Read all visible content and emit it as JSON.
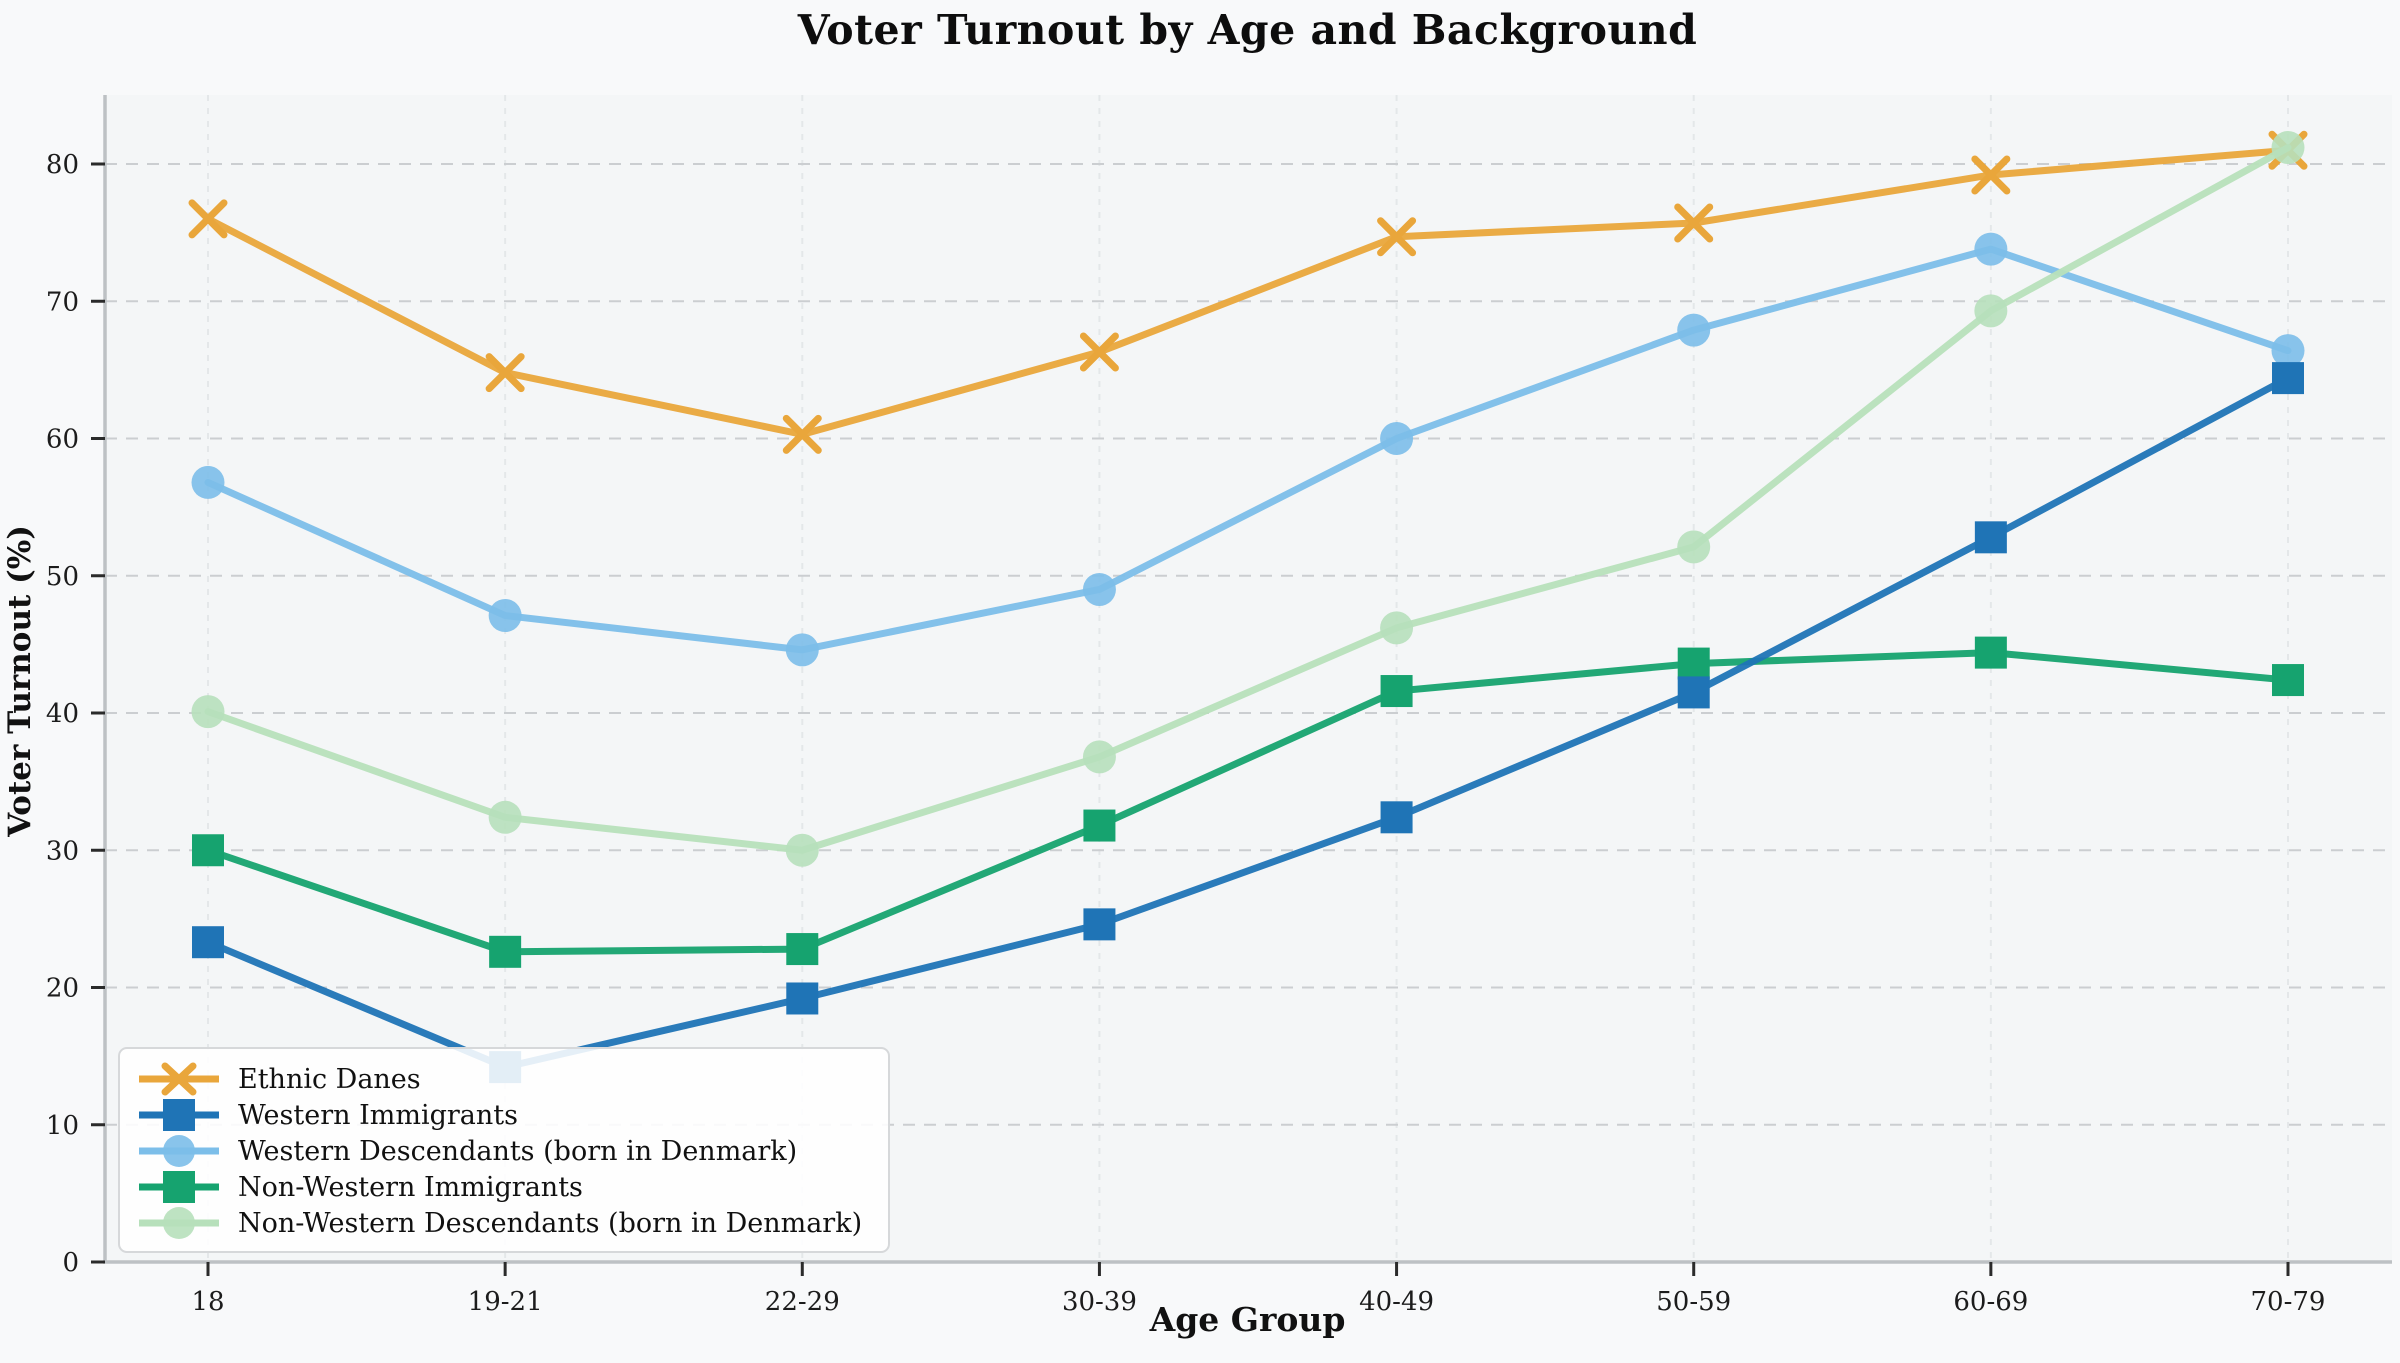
{
  "chart_data": {
    "type": "line",
    "title": "Voter Turnout by Age and Background",
    "xlabel": "Age Group",
    "ylabel": "Voter Turnout (%)",
    "categories": [
      "18",
      "19-21",
      "22-29",
      "30-39",
      "40-49",
      "50-59",
      "60-69",
      "70-79"
    ],
    "y_ticks": [
      0,
      10,
      20,
      30,
      40,
      50,
      60,
      70,
      80
    ],
    "ylim": [
      0,
      85
    ],
    "grid": "dashed horizontal and vertical gridlines",
    "legend_position": "lower left",
    "series": [
      {
        "name": "Ethnic Danes",
        "color": "#E9A63B",
        "marker": "x",
        "values": [
          76.0,
          64.8,
          60.3,
          66.3,
          74.7,
          75.7,
          79.2,
          81.0
        ]
      },
      {
        "name": "Western Immigrants",
        "color": "#1F74B6",
        "marker": "square",
        "values": [
          23.3,
          14.2,
          19.2,
          24.6,
          32.4,
          41.5,
          52.8,
          64.4
        ]
      },
      {
        "name": "Western Descendants (born in Denmark)",
        "color": "#7CBEE9",
        "marker": "circle",
        "values": [
          56.8,
          47.1,
          44.6,
          49.0,
          60.0,
          67.9,
          73.8,
          66.4
        ]
      },
      {
        "name": "Non-Western Immigrants",
        "color": "#16A36F",
        "marker": "square",
        "values": [
          30.0,
          22.6,
          22.8,
          31.8,
          41.6,
          43.6,
          44.4,
          42.4
        ]
      },
      {
        "name": "Non-Western Descendants (born in Denmark)",
        "color": "#B7E0BB",
        "marker": "circle",
        "values": [
          40.1,
          32.4,
          30.0,
          36.8,
          46.2,
          52.1,
          69.3,
          81.2
        ]
      }
    ]
  },
  "colors": {
    "figure_bg": "#F8F9FA",
    "plot_bg": "#F4F6F7",
    "h_grid": "#CBCED1",
    "v_grid": "#E4E7E9",
    "spine": "#BDC1C4",
    "tick": "#2B2B2B",
    "tick_label": "#1C1C1C"
  }
}
